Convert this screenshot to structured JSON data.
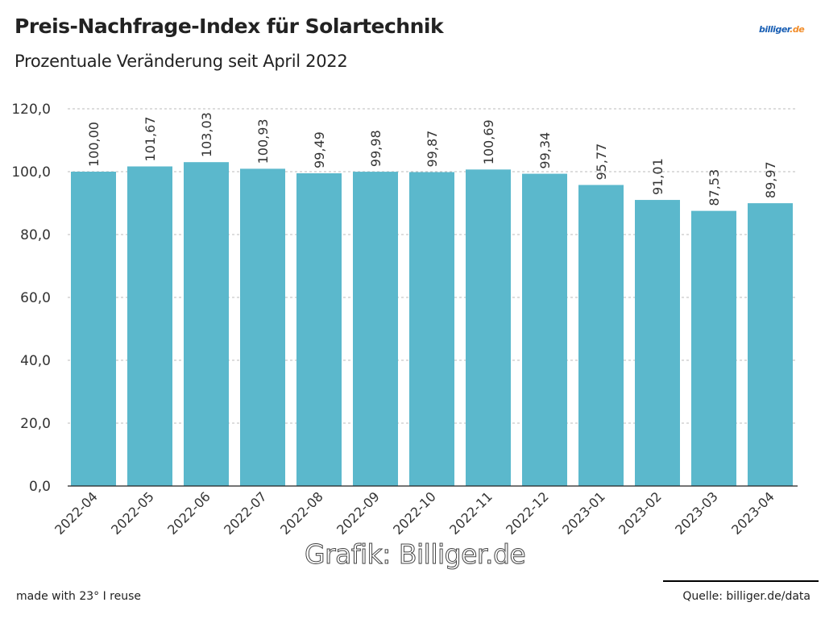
{
  "header": {
    "title": "Preis-Nachfrage-Index für Solartechnik",
    "subtitle": "Prozentuale Veränderung seit April 2022",
    "logo": "billiger.de"
  },
  "footer": {
    "made_with": "made with 23° I reuse",
    "source": "Quelle: billiger.de/data",
    "watermark": "Grafik: Billiger.de"
  },
  "colors": {
    "bar": "#5bb8cc"
  },
  "chart_data": {
    "type": "bar",
    "title": "Preis-Nachfrage-Index für Solartechnik",
    "subtitle": "Prozentuale Veränderung seit April 2022",
    "categories": [
      "2022-04",
      "2022-05",
      "2022-06",
      "2022-07",
      "2022-08",
      "2022-09",
      "2022-10",
      "2022-11",
      "2022-12",
      "2023-01",
      "2023-02",
      "2023-03",
      "2023-04"
    ],
    "values": [
      100.0,
      101.67,
      103.03,
      100.93,
      99.49,
      99.98,
      99.87,
      100.69,
      99.34,
      95.77,
      91.01,
      87.53,
      89.97
    ],
    "value_labels": [
      "100,00",
      "101,67",
      "103,03",
      "100,93",
      "99,49",
      "99,98",
      "99,87",
      "100,69",
      "99,34",
      "95,77",
      "91,01",
      "87,53",
      "89,97"
    ],
    "yticks": [
      "0,0",
      "20,0",
      "40,0",
      "60,0",
      "80,0",
      "100,0",
      "120,0"
    ],
    "ytick_values": [
      0,
      20,
      40,
      60,
      80,
      100,
      120
    ],
    "ylim": [
      0,
      120
    ],
    "grid": true,
    "xlabel": "",
    "ylabel": ""
  }
}
